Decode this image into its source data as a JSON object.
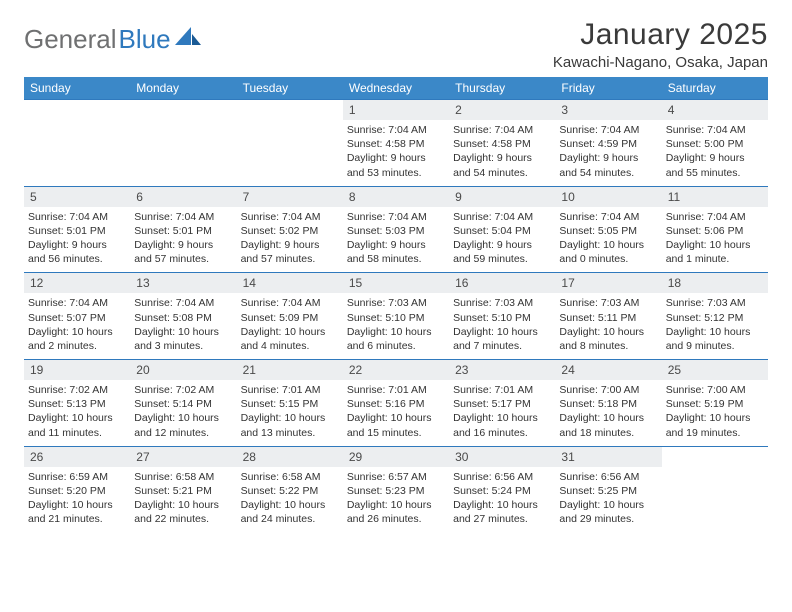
{
  "brand": {
    "part1": "General",
    "part2": "Blue"
  },
  "title": "January 2025",
  "location": "Kawachi-Nagano, Osaka, Japan",
  "colors": {
    "header_bg": "#3b88c8",
    "header_text": "#ffffff",
    "daynum_bg": "#eceef0",
    "border": "#2f79bd",
    "body_text": "#333333",
    "title_text": "#3a3a3a",
    "logo_gray": "#6f7071",
    "logo_blue": "#2f79bd"
  },
  "day_headers": [
    "Sunday",
    "Monday",
    "Tuesday",
    "Wednesday",
    "Thursday",
    "Friday",
    "Saturday"
  ],
  "weeks": [
    [
      {
        "n": "",
        "lines": []
      },
      {
        "n": "",
        "lines": []
      },
      {
        "n": "",
        "lines": []
      },
      {
        "n": "1",
        "lines": [
          "Sunrise: 7:04 AM",
          "Sunset: 4:58 PM",
          "Daylight: 9 hours and 53 minutes."
        ]
      },
      {
        "n": "2",
        "lines": [
          "Sunrise: 7:04 AM",
          "Sunset: 4:58 PM",
          "Daylight: 9 hours and 54 minutes."
        ]
      },
      {
        "n": "3",
        "lines": [
          "Sunrise: 7:04 AM",
          "Sunset: 4:59 PM",
          "Daylight: 9 hours and 54 minutes."
        ]
      },
      {
        "n": "4",
        "lines": [
          "Sunrise: 7:04 AM",
          "Sunset: 5:00 PM",
          "Daylight: 9 hours and 55 minutes."
        ]
      }
    ],
    [
      {
        "n": "5",
        "lines": [
          "Sunrise: 7:04 AM",
          "Sunset: 5:01 PM",
          "Daylight: 9 hours and 56 minutes."
        ]
      },
      {
        "n": "6",
        "lines": [
          "Sunrise: 7:04 AM",
          "Sunset: 5:01 PM",
          "Daylight: 9 hours and 57 minutes."
        ]
      },
      {
        "n": "7",
        "lines": [
          "Sunrise: 7:04 AM",
          "Sunset: 5:02 PM",
          "Daylight: 9 hours and 57 minutes."
        ]
      },
      {
        "n": "8",
        "lines": [
          "Sunrise: 7:04 AM",
          "Sunset: 5:03 PM",
          "Daylight: 9 hours and 58 minutes."
        ]
      },
      {
        "n": "9",
        "lines": [
          "Sunrise: 7:04 AM",
          "Sunset: 5:04 PM",
          "Daylight: 9 hours and 59 minutes."
        ]
      },
      {
        "n": "10",
        "lines": [
          "Sunrise: 7:04 AM",
          "Sunset: 5:05 PM",
          "Daylight: 10 hours and 0 minutes."
        ]
      },
      {
        "n": "11",
        "lines": [
          "Sunrise: 7:04 AM",
          "Sunset: 5:06 PM",
          "Daylight: 10 hours and 1 minute."
        ]
      }
    ],
    [
      {
        "n": "12",
        "lines": [
          "Sunrise: 7:04 AM",
          "Sunset: 5:07 PM",
          "Daylight: 10 hours and 2 minutes."
        ]
      },
      {
        "n": "13",
        "lines": [
          "Sunrise: 7:04 AM",
          "Sunset: 5:08 PM",
          "Daylight: 10 hours and 3 minutes."
        ]
      },
      {
        "n": "14",
        "lines": [
          "Sunrise: 7:04 AM",
          "Sunset: 5:09 PM",
          "Daylight: 10 hours and 4 minutes."
        ]
      },
      {
        "n": "15",
        "lines": [
          "Sunrise: 7:03 AM",
          "Sunset: 5:10 PM",
          "Daylight: 10 hours and 6 minutes."
        ]
      },
      {
        "n": "16",
        "lines": [
          "Sunrise: 7:03 AM",
          "Sunset: 5:10 PM",
          "Daylight: 10 hours and 7 minutes."
        ]
      },
      {
        "n": "17",
        "lines": [
          "Sunrise: 7:03 AM",
          "Sunset: 5:11 PM",
          "Daylight: 10 hours and 8 minutes."
        ]
      },
      {
        "n": "18",
        "lines": [
          "Sunrise: 7:03 AM",
          "Sunset: 5:12 PM",
          "Daylight: 10 hours and 9 minutes."
        ]
      }
    ],
    [
      {
        "n": "19",
        "lines": [
          "Sunrise: 7:02 AM",
          "Sunset: 5:13 PM",
          "Daylight: 10 hours and 11 minutes."
        ]
      },
      {
        "n": "20",
        "lines": [
          "Sunrise: 7:02 AM",
          "Sunset: 5:14 PM",
          "Daylight: 10 hours and 12 minutes."
        ]
      },
      {
        "n": "21",
        "lines": [
          "Sunrise: 7:01 AM",
          "Sunset: 5:15 PM",
          "Daylight: 10 hours and 13 minutes."
        ]
      },
      {
        "n": "22",
        "lines": [
          "Sunrise: 7:01 AM",
          "Sunset: 5:16 PM",
          "Daylight: 10 hours and 15 minutes."
        ]
      },
      {
        "n": "23",
        "lines": [
          "Sunrise: 7:01 AM",
          "Sunset: 5:17 PM",
          "Daylight: 10 hours and 16 minutes."
        ]
      },
      {
        "n": "24",
        "lines": [
          "Sunrise: 7:00 AM",
          "Sunset: 5:18 PM",
          "Daylight: 10 hours and 18 minutes."
        ]
      },
      {
        "n": "25",
        "lines": [
          "Sunrise: 7:00 AM",
          "Sunset: 5:19 PM",
          "Daylight: 10 hours and 19 minutes."
        ]
      }
    ],
    [
      {
        "n": "26",
        "lines": [
          "Sunrise: 6:59 AM",
          "Sunset: 5:20 PM",
          "Daylight: 10 hours and 21 minutes."
        ]
      },
      {
        "n": "27",
        "lines": [
          "Sunrise: 6:58 AM",
          "Sunset: 5:21 PM",
          "Daylight: 10 hours and 22 minutes."
        ]
      },
      {
        "n": "28",
        "lines": [
          "Sunrise: 6:58 AM",
          "Sunset: 5:22 PM",
          "Daylight: 10 hours and 24 minutes."
        ]
      },
      {
        "n": "29",
        "lines": [
          "Sunrise: 6:57 AM",
          "Sunset: 5:23 PM",
          "Daylight: 10 hours and 26 minutes."
        ]
      },
      {
        "n": "30",
        "lines": [
          "Sunrise: 6:56 AM",
          "Sunset: 5:24 PM",
          "Daylight: 10 hours and 27 minutes."
        ]
      },
      {
        "n": "31",
        "lines": [
          "Sunrise: 6:56 AM",
          "Sunset: 5:25 PM",
          "Daylight: 10 hours and 29 minutes."
        ]
      },
      {
        "n": "",
        "lines": []
      }
    ]
  ]
}
